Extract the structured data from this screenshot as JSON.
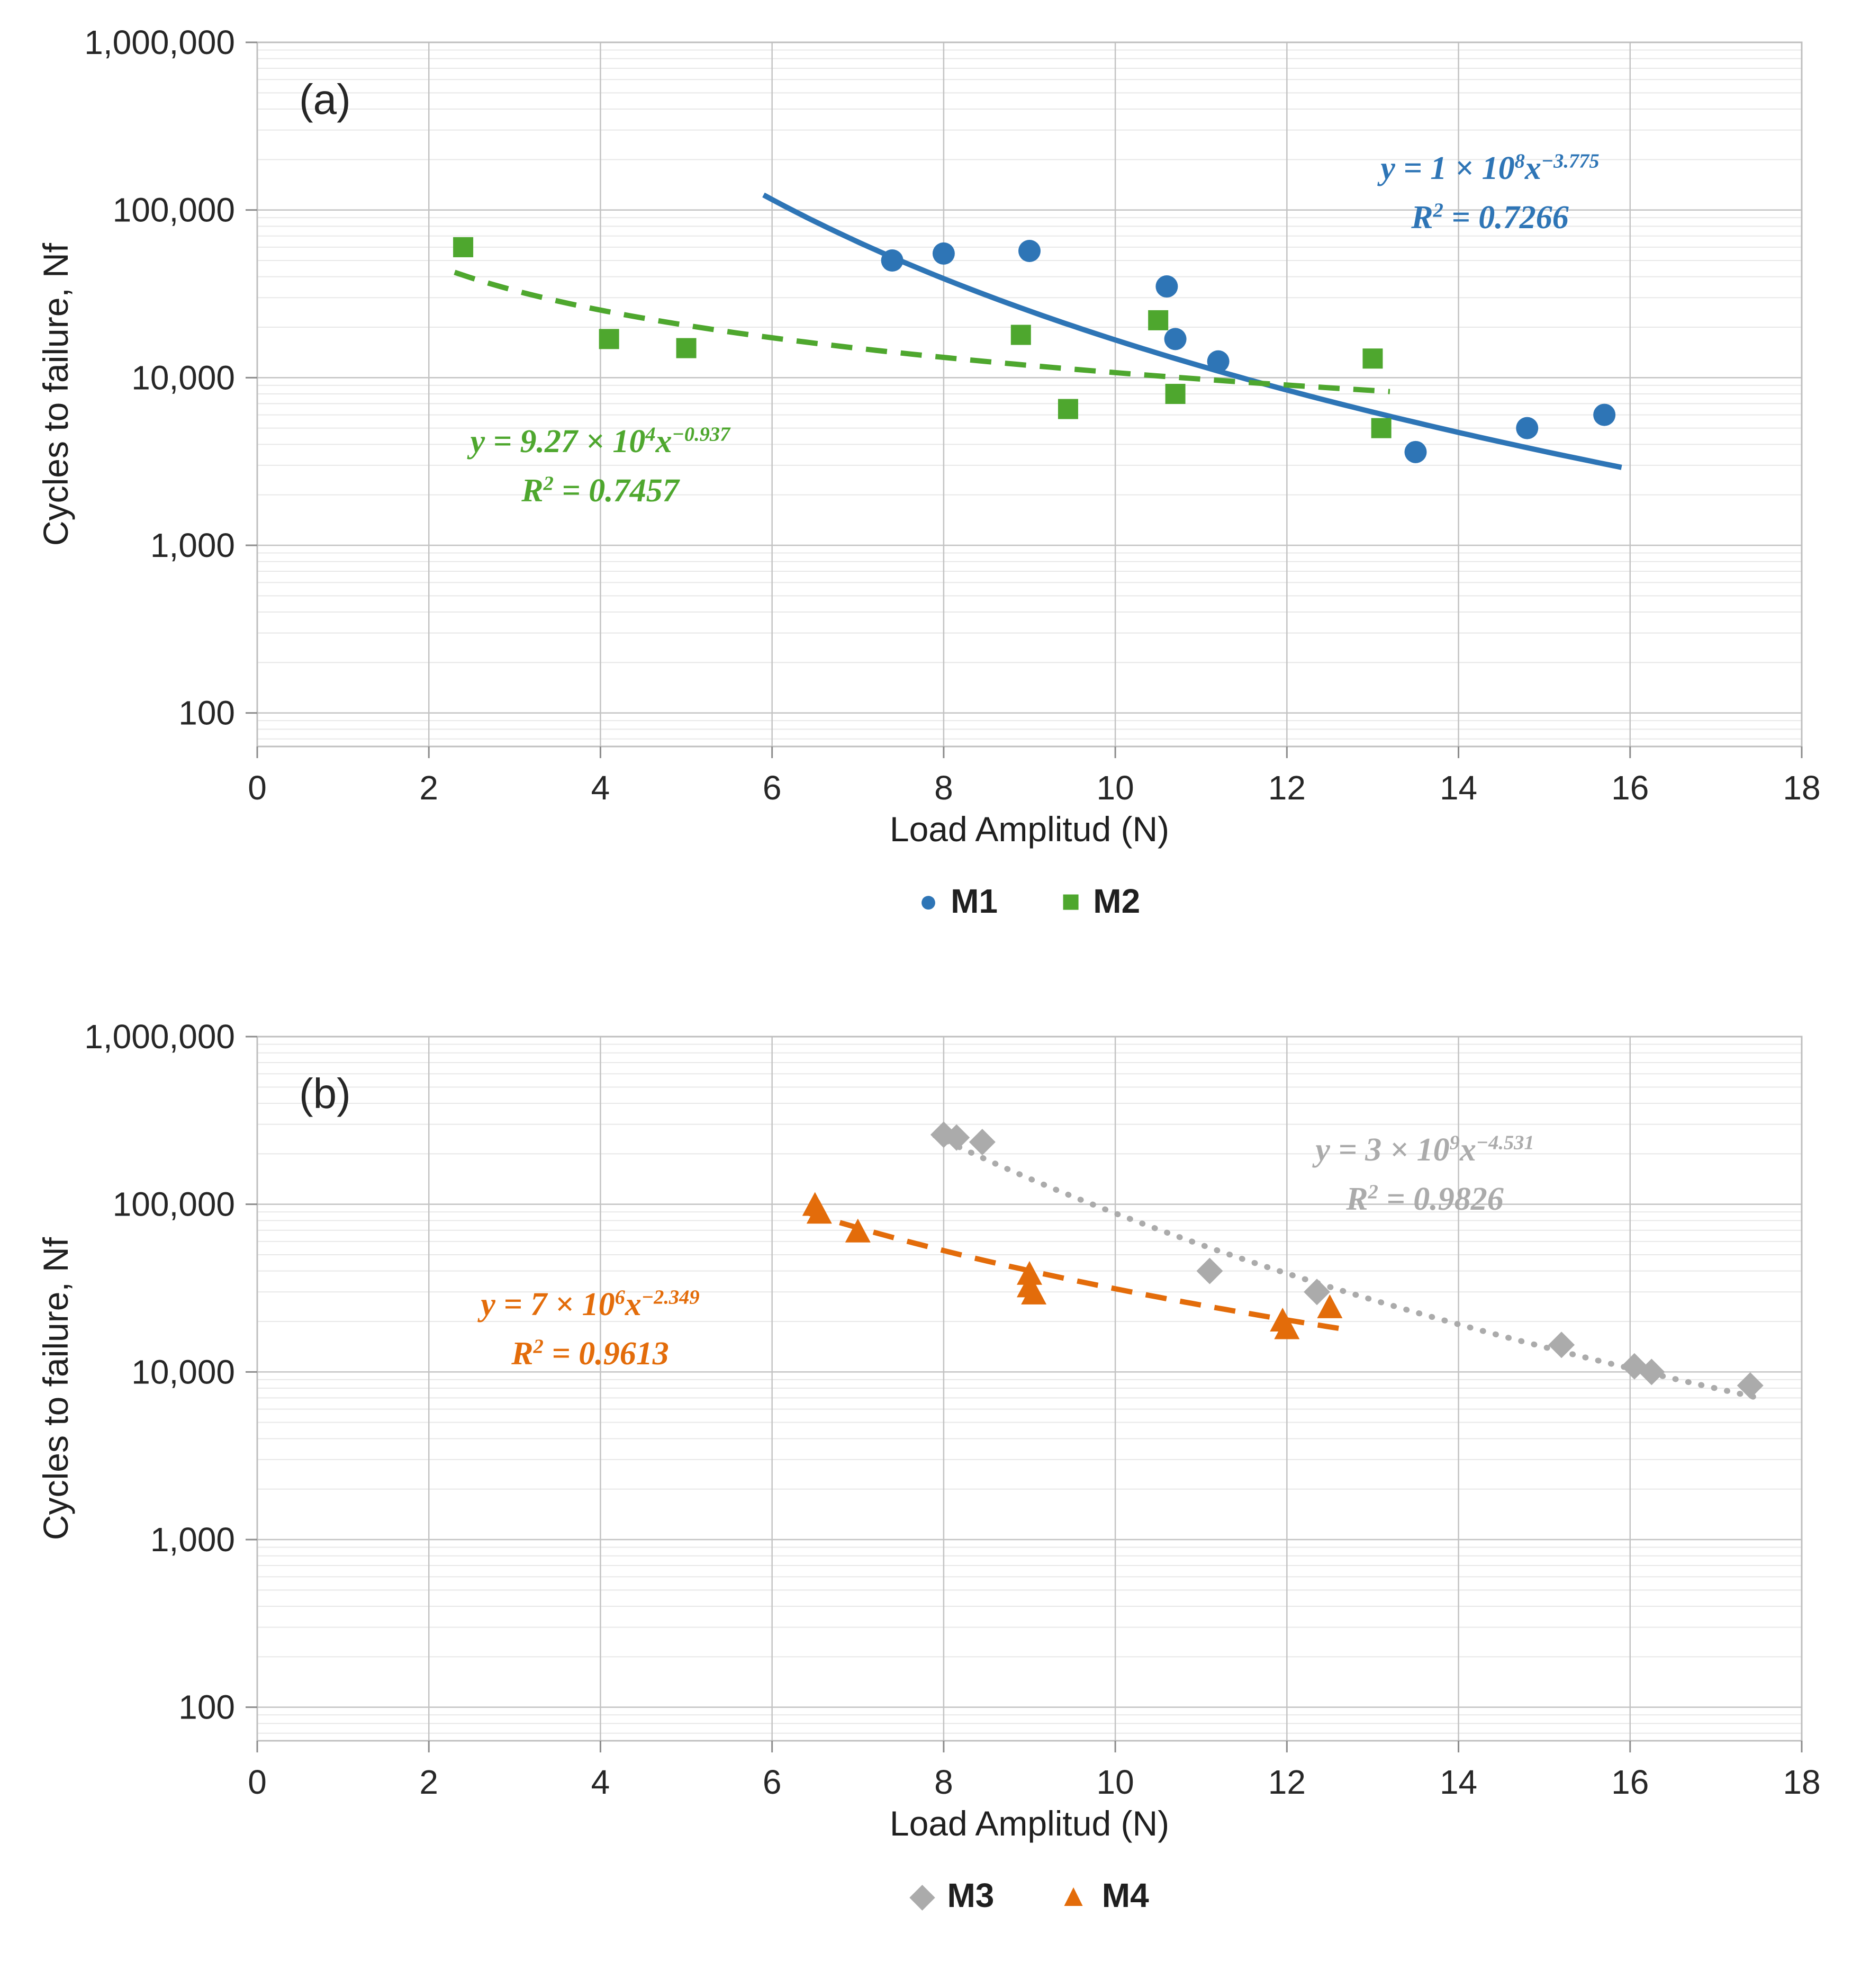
{
  "chart_data": [
    {
      "type": "scatter",
      "panel_label": "(a)",
      "xlabel": "Load Amplitud (N)",
      "ylabel": "Cycles to failure, Nf",
      "xlim": [
        0,
        18
      ],
      "x_tick_step": 2,
      "ylog": true,
      "ylim": [
        100,
        1000000
      ],
      "y_tick_labels": [
        "100",
        "1,000",
        "10,000",
        "100,000",
        "1,000,000"
      ],
      "grid": true,
      "legend_position": "bottom",
      "series": [
        {
          "name": "M1",
          "marker": "circle",
          "color": "#2E75B6",
          "points": [
            [
              7.4,
              50000
            ],
            [
              8.0,
              55000
            ],
            [
              9.0,
              57000
            ],
            [
              10.6,
              35000
            ],
            [
              10.7,
              17000
            ],
            [
              11.2,
              12500
            ],
            [
              13.5,
              3600
            ],
            [
              14.8,
              5000
            ],
            [
              15.7,
              6000
            ]
          ]
        },
        {
          "name": "M2",
          "marker": "square",
          "color": "#4EA72E",
          "points": [
            [
              2.4,
              60000
            ],
            [
              4.1,
              17000
            ],
            [
              5.0,
              15000
            ],
            [
              8.9,
              18000
            ],
            [
              9.45,
              6500
            ],
            [
              10.5,
              22000
            ],
            [
              10.7,
              8000
            ],
            [
              13.0,
              13000
            ],
            [
              13.1,
              5000
            ]
          ]
        }
      ],
      "trendlines": [
        {
          "for": "M1",
          "style": "solid",
          "color": "#2E75B6",
          "coef": 100000000,
          "exponent": -3.775,
          "r_squared": 0.7266,
          "x_range": [
            5.9,
            15.9
          ],
          "equation": {
            "base": "y = 1 × 10",
            "pow": "8",
            "xvar": "x",
            "xexp": "−3.775",
            "r2_base": "R",
            "r2_sup": "2",
            "r2_rest": " = 0.7266"
          }
        },
        {
          "for": "M2",
          "style": "dashed",
          "color": "#4EA72E",
          "coef": 92700,
          "exponent": -0.937,
          "r_squared": 0.7457,
          "x_range": [
            2.3,
            13.2
          ],
          "equation": {
            "base": "y = 9.27 × 10",
            "pow": "4",
            "xvar": "x",
            "xexp": "−0.937",
            "r2_base": "R",
            "r2_sup": "2",
            "r2_rest": " = 0.7457"
          }
        }
      ]
    },
    {
      "type": "scatter",
      "panel_label": "(b)",
      "xlabel": "Load Amplitud (N)",
      "ylabel": "Cycles to failure, Nf",
      "xlim": [
        0,
        18
      ],
      "x_tick_step": 2,
      "ylog": true,
      "ylim": [
        100,
        1000000
      ],
      "y_tick_labels": [
        "100",
        "1,000",
        "10,000",
        "100,000",
        "1,000,000"
      ],
      "grid": true,
      "legend_position": "bottom",
      "series": [
        {
          "name": "M3",
          "marker": "diamond",
          "color": "#ABABAB",
          "points": [
            [
              8.0,
              260000
            ],
            [
              8.15,
              250000
            ],
            [
              8.45,
              235000
            ],
            [
              11.1,
              40000
            ],
            [
              12.35,
              30000
            ],
            [
              15.2,
              14500
            ],
            [
              16.05,
              10800
            ],
            [
              16.25,
              10000
            ],
            [
              17.4,
              8300
            ]
          ]
        },
        {
          "name": "M4",
          "marker": "triangle",
          "color": "#E36C0A",
          "points": [
            [
              6.5,
              98000
            ],
            [
              6.55,
              88000
            ],
            [
              7.0,
              68000
            ],
            [
              9.0,
              38000
            ],
            [
              9.0,
              32000
            ],
            [
              9.05,
              29000
            ],
            [
              11.95,
              20000
            ],
            [
              12.0,
              18000
            ],
            [
              12.5,
              24000
            ]
          ]
        }
      ],
      "trendlines": [
        {
          "for": "M3",
          "style": "dotted",
          "color": "#ABABAB",
          "coef": 3000000000,
          "exponent": -4.531,
          "r_squared": 0.9826,
          "x_range": [
            7.9,
            17.5
          ],
          "equation": {
            "base": "y = 3 × 10",
            "pow": "9",
            "xvar": "x",
            "xexp": "−4.531",
            "r2_base": "R",
            "r2_sup": "2",
            "r2_rest": " = 0.9826"
          }
        },
        {
          "for": "M4",
          "style": "dashed",
          "color": "#E36C0A",
          "coef": 7000000,
          "exponent": -2.349,
          "r_squared": 0.9613,
          "x_range": [
            6.4,
            12.7
          ],
          "equation": {
            "base": "y = 7 × 10",
            "pow": "6",
            "xvar": "x",
            "xexp": "−2.349",
            "r2_base": "R",
            "r2_sup": "2",
            "r2_rest": " = 0.9613"
          }
        }
      ]
    }
  ]
}
